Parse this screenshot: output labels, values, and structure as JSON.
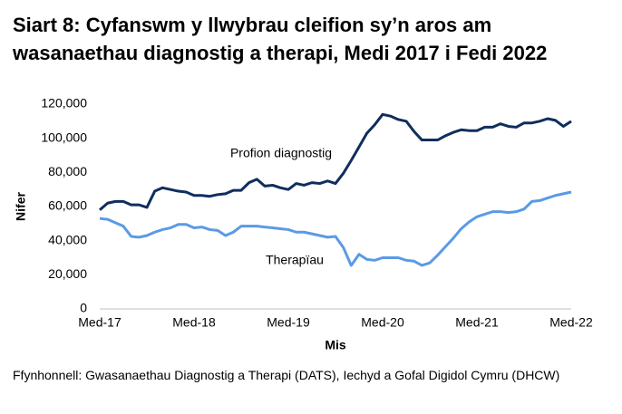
{
  "chart_data": {
    "type": "line",
    "title": "Siart 8: Cyfanswm y llwybrau cleifion sy’n aros am wasanaethau diagnostig a therapi, Medi 2017 i Fedi 2022",
    "y_label": "Nifer",
    "x_label": "Mis",
    "source": "Ffynhonnell: Gwasanaethau Diagnostig a Therapi (DATS), Iechyd a Gofal Digidol Cymru (DHCW)",
    "categories": [
      "Med-17",
      null,
      null,
      null,
      null,
      null,
      null,
      null,
      null,
      null,
      null,
      null,
      "Med-18",
      null,
      null,
      null,
      null,
      null,
      null,
      null,
      null,
      null,
      null,
      null,
      "Med-19",
      null,
      null,
      null,
      null,
      null,
      null,
      null,
      null,
      null,
      null,
      null,
      "Med-20",
      null,
      null,
      null,
      null,
      null,
      null,
      null,
      null,
      null,
      null,
      null,
      "Med-21",
      null,
      null,
      null,
      null,
      null,
      null,
      null,
      null,
      null,
      null,
      null,
      "Med-22"
    ],
    "series": [
      {
        "name": "Profion diagnostig",
        "color": "#102d5e",
        "values": [
          58000,
          62000,
          63000,
          63000,
          61000,
          61000,
          59500,
          69000,
          71000,
          70000,
          69000,
          68500,
          66500,
          66500,
          66000,
          67000,
          67500,
          69500,
          69500,
          74000,
          76000,
          72000,
          72500,
          71000,
          70000,
          73500,
          72500,
          74000,
          73500,
          75000,
          73500,
          79500,
          87000,
          95000,
          103000,
          108000,
          114000,
          113000,
          111000,
          110000,
          104000,
          99000,
          99000,
          99000,
          101500,
          103500,
          105000,
          104500,
          104500,
          106500,
          106500,
          108500,
          107000,
          106500,
          109000,
          109000,
          110000,
          111500,
          110500,
          107000,
          110000
        ]
      },
      {
        "name": "Therapïau",
        "color": "#5a9ae6",
        "values": [
          53000,
          52500,
          50500,
          48500,
          42500,
          42000,
          43000,
          45000,
          46500,
          47500,
          49500,
          49500,
          47500,
          48000,
          46500,
          46000,
          43000,
          45000,
          48500,
          48500,
          48500,
          48000,
          47500,
          47000,
          46500,
          45000,
          45000,
          44000,
          43000,
          42000,
          42500,
          36000,
          25500,
          32000,
          29000,
          28500,
          30000,
          30000,
          30000,
          28500,
          28000,
          25500,
          27000,
          31500,
          36500,
          41500,
          47000,
          51000,
          54000,
          55500,
          57000,
          57000,
          56500,
          57000,
          58500,
          63000,
          63500,
          65000,
          66500,
          67500,
          68500
        ]
      }
    ],
    "ylim": [
      0,
      120000
    ],
    "yticks": [
      0,
      {
        "value": 20000,
        "label": "20,000"
      },
      {
        "value": 40000,
        "label": "40,000"
      },
      {
        "value": 60000,
        "label": "60,000"
      },
      {
        "value": 80000,
        "label": "80,000"
      },
      {
        "value": 100000,
        "label": "100,000"
      },
      {
        "value": 120000,
        "label": "120,000"
      }
    ],
    "grid": false
  }
}
